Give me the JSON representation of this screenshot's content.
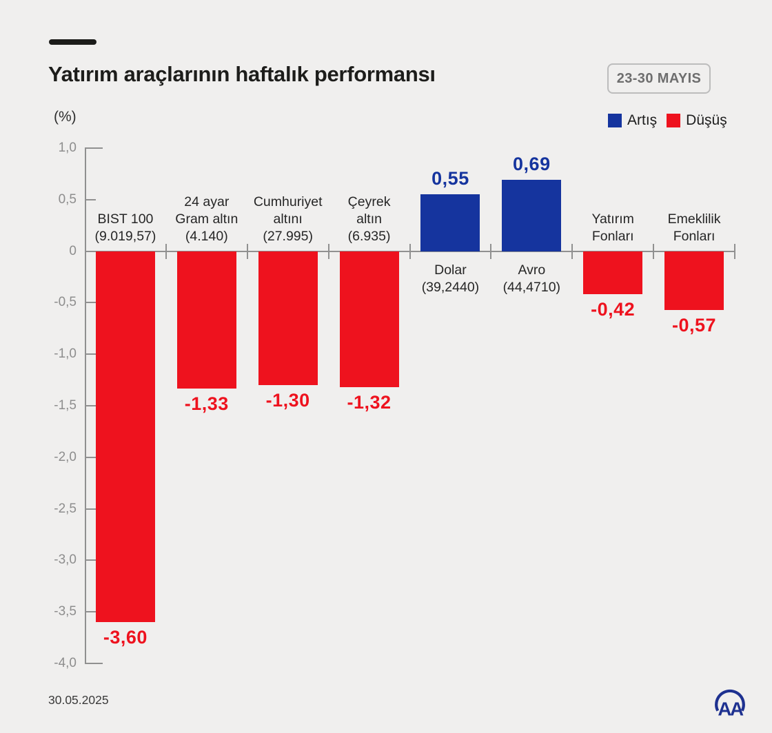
{
  "header": {
    "title": "Yatırım araçlarının haftalık performansı",
    "unit_label": "(%)",
    "date_badge": "23-30 MAYIS"
  },
  "legend": {
    "items": [
      {
        "label": "Artış",
        "color": "#15349e"
      },
      {
        "label": "Düşüş",
        "color": "#ee121e"
      }
    ]
  },
  "footer": {
    "date": "30.05.2025",
    "logo_text": "AA",
    "logo_icon": "anadolu-agency-logo",
    "logo_color": "#1e3190"
  },
  "chart_data": {
    "type": "bar",
    "title": "Yatırım araçlarının haftalık performansı",
    "xlabel": "",
    "ylabel": "(%)",
    "ylim": [
      -4.0,
      1.0
    ],
    "ytick_step": 0.5,
    "ytick_labels": [
      "1,0",
      "0,5",
      "0",
      "-0,5",
      "-1,0",
      "-1,5",
      "-2,0",
      "-2,5",
      "-3,0",
      "-3,5",
      "-4,0"
    ],
    "grid": false,
    "legend_position": "top-right",
    "colors": {
      "positive": "#15349e",
      "negative": "#ee121e",
      "axis": "#909090"
    },
    "categories": [
      {
        "name_lines": [
          "BIST 100"
        ],
        "detail": "(9.019,57)",
        "value": -3.6,
        "value_label": "-3,60"
      },
      {
        "name_lines": [
          "24 ayar",
          "Gram altın"
        ],
        "detail": "(4.140)",
        "value": -1.33,
        "value_label": "-1,33"
      },
      {
        "name_lines": [
          "Cumhuriyet",
          "altını"
        ],
        "detail": "(27.995)",
        "value": -1.3,
        "value_label": "-1,30"
      },
      {
        "name_lines": [
          "Çeyrek",
          "altın"
        ],
        "detail": "(6.935)",
        "value": -1.32,
        "value_label": "-1,32"
      },
      {
        "name_lines": [
          "Dolar"
        ],
        "detail": "(39,2440)",
        "value": 0.55,
        "value_label": "0,55"
      },
      {
        "name_lines": [
          "Avro"
        ],
        "detail": "(44,4710)",
        "value": 0.69,
        "value_label": "0,69"
      },
      {
        "name_lines": [
          "Yatırım",
          "Fonları"
        ],
        "detail": "",
        "value": -0.42,
        "value_label": "-0,42"
      },
      {
        "name_lines": [
          "Emeklilik",
          "Fonları"
        ],
        "detail": "",
        "value": -0.57,
        "value_label": "-0,57"
      }
    ]
  }
}
